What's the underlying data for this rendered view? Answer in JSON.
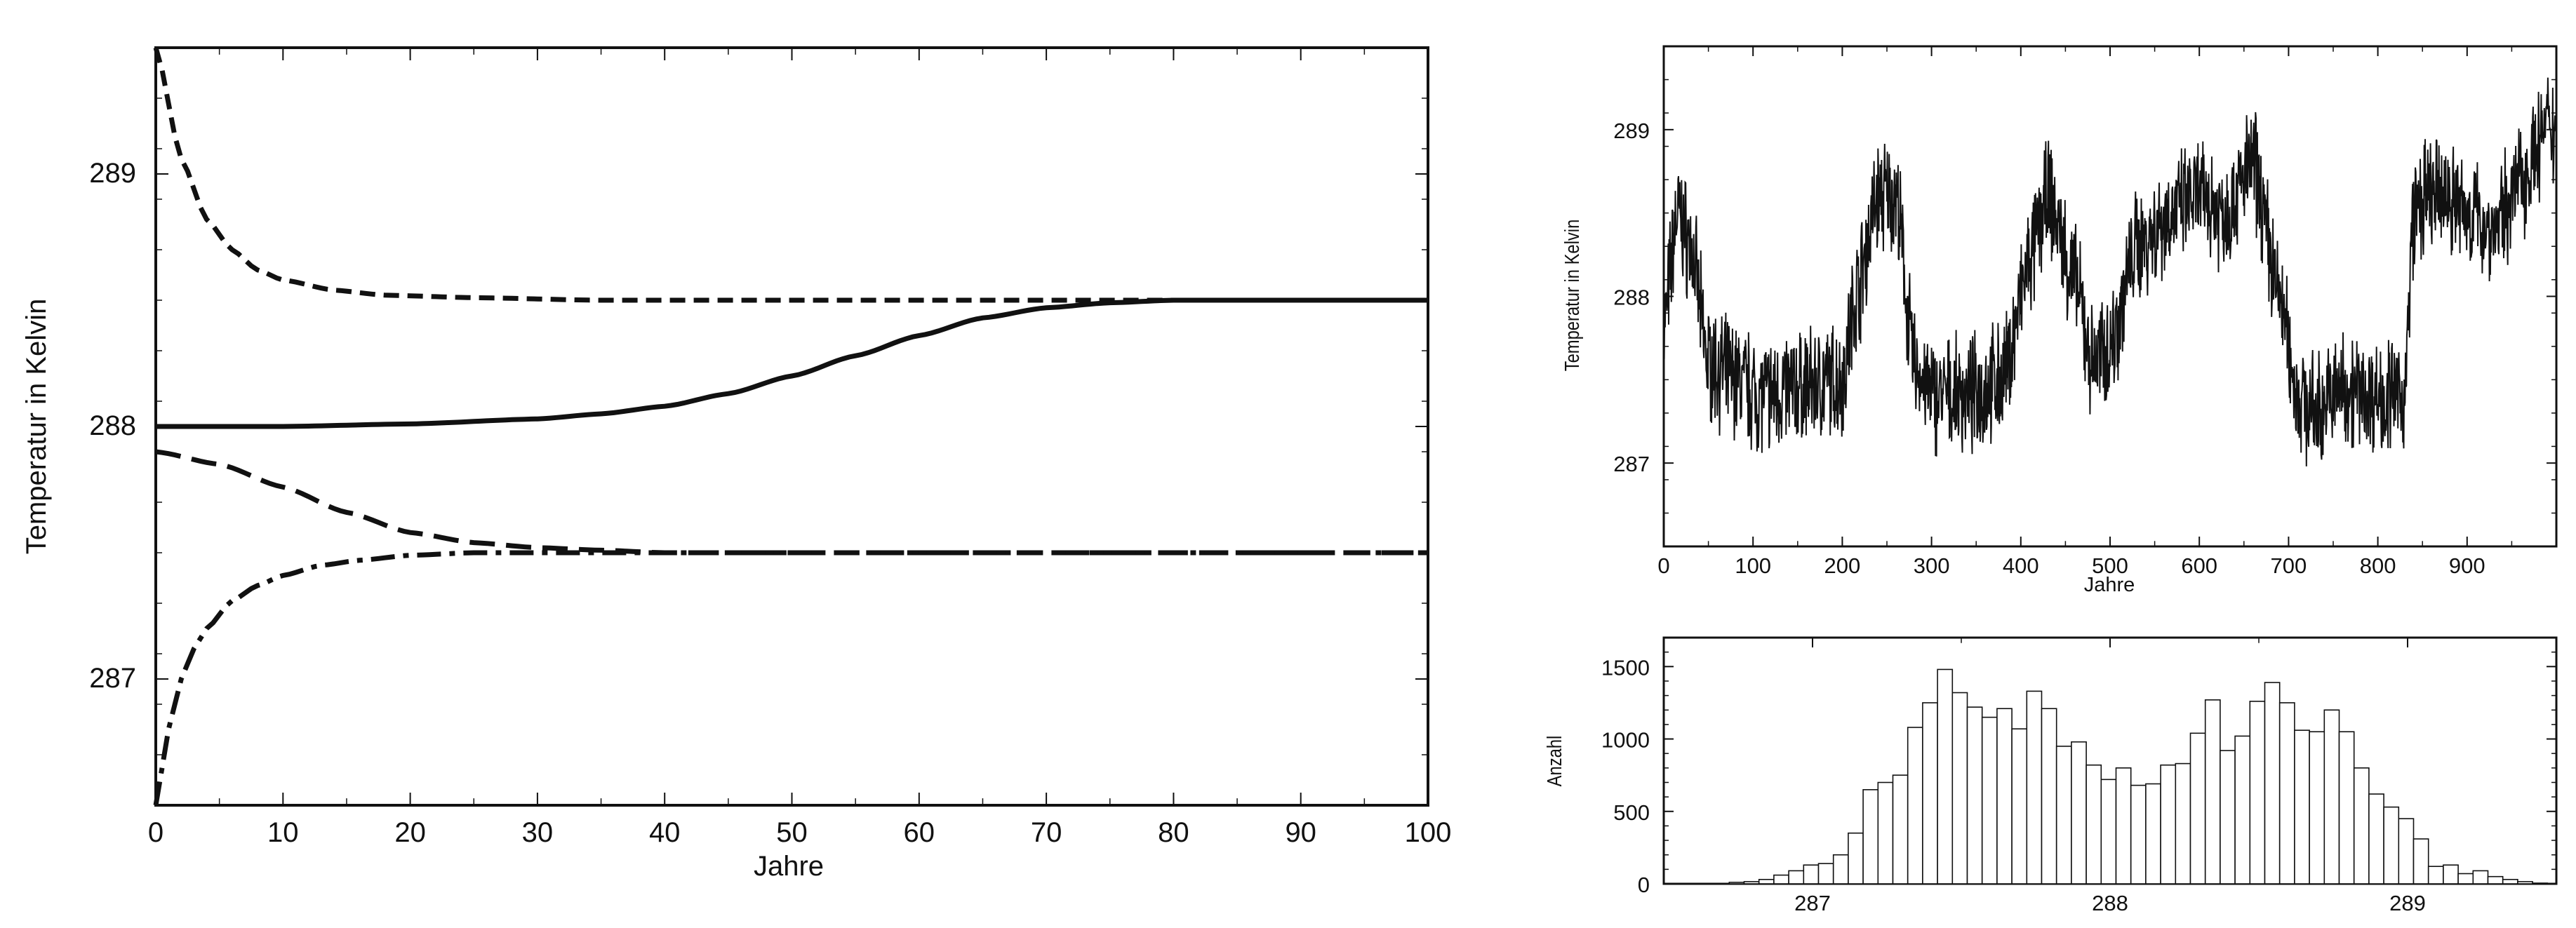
{
  "chart_data": [
    {
      "type": "line",
      "xlabel": "Jahre",
      "ylabel": "Temperatur in Kelvin",
      "xlim": [
        0,
        100
      ],
      "ylim": [
        286.5,
        289.5
      ],
      "xticks": [
        0,
        10,
        20,
        30,
        40,
        50,
        60,
        70,
        80,
        90,
        100
      ],
      "yticks": [
        287,
        288,
        289
      ],
      "grid": false,
      "legend": "none",
      "series": [
        {
          "style": "short-dash",
          "x": [
            0,
            2,
            4,
            6,
            8,
            10,
            14,
            18,
            25,
            35,
            50,
            100
          ],
          "y": [
            289.5,
            289.06,
            288.82,
            288.7,
            288.62,
            288.58,
            288.54,
            288.52,
            288.51,
            288.5,
            288.5,
            288.5
          ]
        },
        {
          "style": "solid",
          "x": [
            0,
            10,
            20,
            30,
            35,
            40,
            45,
            50,
            55,
            60,
            65,
            70,
            75,
            80,
            90,
            100
          ],
          "y": [
            288.0,
            288.0,
            288.01,
            288.03,
            288.05,
            288.08,
            288.13,
            288.2,
            288.28,
            288.36,
            288.43,
            288.47,
            288.49,
            288.5,
            288.5,
            288.5
          ]
        },
        {
          "style": "long-dash",
          "x": [
            0,
            5,
            10,
            15,
            20,
            25,
            30,
            35,
            40,
            50,
            60,
            100
          ],
          "y": [
            287.9,
            287.85,
            287.76,
            287.66,
            287.58,
            287.54,
            287.52,
            287.51,
            287.5,
            287.5,
            287.5,
            287.5
          ]
        },
        {
          "style": "dash-dot",
          "x": [
            0,
            1,
            2,
            3,
            4,
            6,
            8,
            10,
            13,
            16,
            20,
            25,
            30,
            40,
            100
          ],
          "y": [
            286.5,
            286.8,
            287.0,
            287.12,
            287.2,
            287.31,
            287.37,
            287.41,
            287.45,
            287.47,
            287.49,
            287.5,
            287.5,
            287.5,
            287.5
          ]
        }
      ]
    },
    {
      "type": "line",
      "xlabel": "Jahre",
      "ylabel": "Temperatur in Kelvin",
      "xlim": [
        0,
        1000
      ],
      "ylim": [
        286.5,
        289.5
      ],
      "xticks": [
        0,
        100,
        200,
        300,
        400,
        500,
        600,
        700,
        800,
        900
      ],
      "yticks": [
        287,
        288,
        289
      ],
      "grid": false,
      "legend": "none",
      "series": [
        {
          "style": "noisy-solid",
          "x": [
            0,
            15,
            30,
            50,
            80,
            110,
            150,
            200,
            215,
            240,
            260,
            280,
            300,
            340,
            380,
            410,
            430,
            460,
            480,
            500,
            530,
            570,
            600,
            630,
            660,
            690,
            710,
            730,
            760,
            800,
            830,
            840,
            860,
            880,
            900,
            930,
            960,
            990
          ],
          "y": [
            287.8,
            288.5,
            288.3,
            287.6,
            287.5,
            287.4,
            287.45,
            287.5,
            288.0,
            288.6,
            288.6,
            287.6,
            287.4,
            287.4,
            287.5,
            288.2,
            288.6,
            288.1,
            287.6,
            287.7,
            288.3,
            288.5,
            288.6,
            288.5,
            288.8,
            288.0,
            287.4,
            287.3,
            287.45,
            287.4,
            287.4,
            288.5,
            288.6,
            288.6,
            288.5,
            288.4,
            288.7,
            289.0
          ]
        }
      ]
    },
    {
      "type": "bar",
      "xlabel": "",
      "ylabel": "Anzahl",
      "xlim": [
        286.5,
        289.5
      ],
      "ylim": [
        0,
        1700
      ],
      "xticks": [
        287,
        288,
        289
      ],
      "yticks": [
        0,
        500,
        1000,
        1500
      ],
      "grid": false,
      "legend": "none",
      "bin_start": 286.72,
      "bin_width": 0.05,
      "values": [
        10,
        15,
        30,
        60,
        90,
        130,
        140,
        200,
        350,
        650,
        700,
        750,
        1080,
        1250,
        1480,
        1320,
        1220,
        1150,
        1210,
        1070,
        1330,
        1210,
        950,
        980,
        820,
        720,
        800,
        680,
        690,
        820,
        830,
        1040,
        1270,
        920,
        1020,
        1260,
        1390,
        1250,
        1060,
        1050,
        1200,
        1050,
        800,
        620,
        530,
        450,
        310,
        120,
        130,
        70,
        90,
        50,
        30,
        15,
        5
      ]
    }
  ]
}
